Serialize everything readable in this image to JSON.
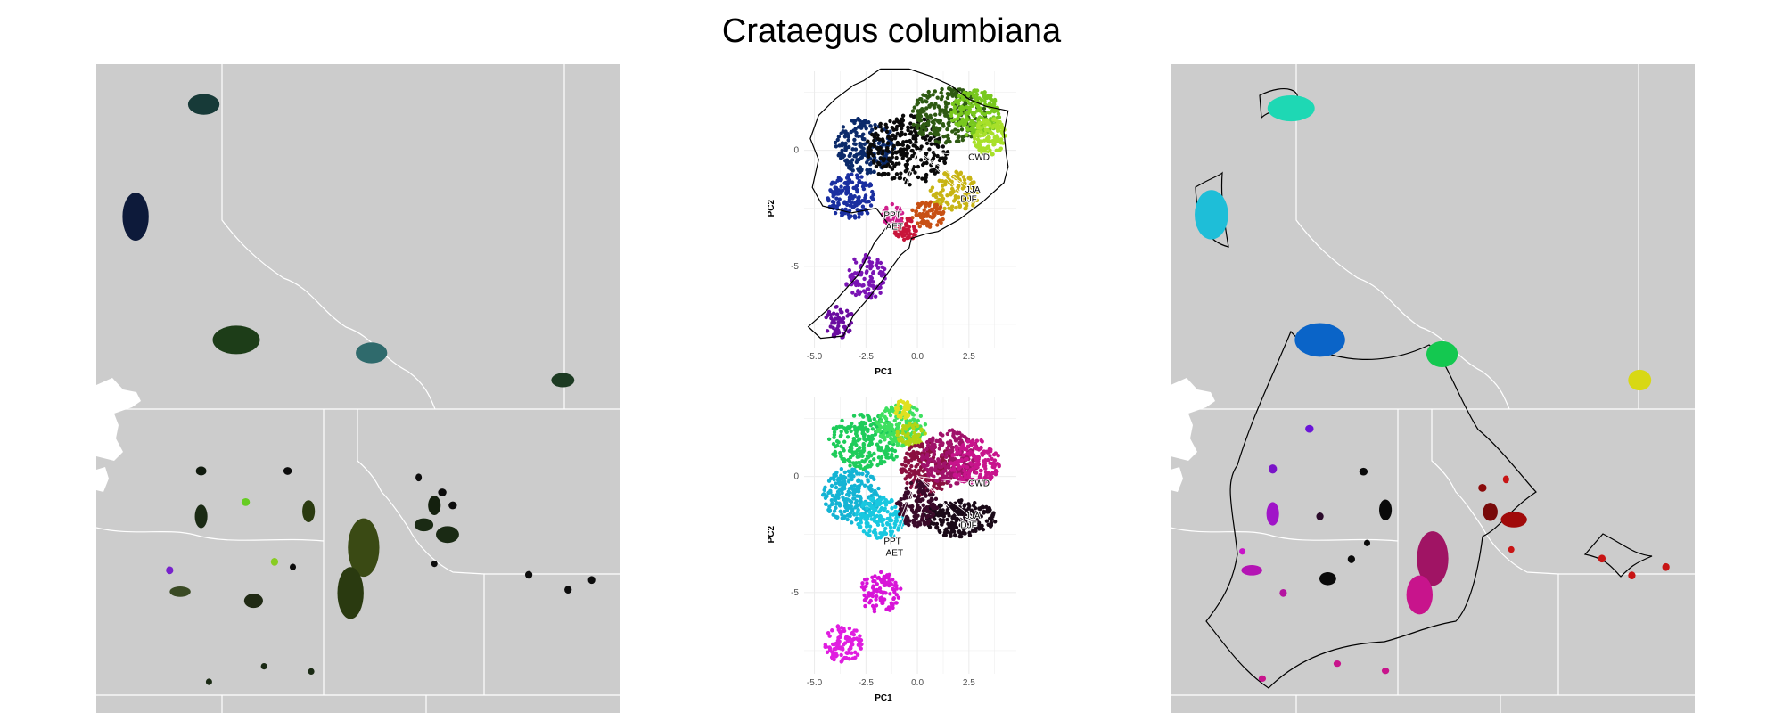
{
  "title": "Crataegus columbiana",
  "colors": {
    "land": "#cccccc",
    "water": "#ffffff",
    "border": "#ffffff",
    "hull": "#000000"
  },
  "chart_data": [
    {
      "type": "map",
      "panel": "left",
      "note": "",
      "patches": [
        {
          "cx": 0.205,
          "cy": 0.062,
          "rx": 0.03,
          "ry": 0.016,
          "color": "#173a38"
        },
        {
          "cx": 0.075,
          "cy": 0.235,
          "rx": 0.025,
          "ry": 0.037,
          "color": "#0d1a3a"
        },
        {
          "cx": 0.267,
          "cy": 0.425,
          "rx": 0.045,
          "ry": 0.022,
          "color": "#1d3d18"
        },
        {
          "cx": 0.525,
          "cy": 0.445,
          "rx": 0.03,
          "ry": 0.016,
          "color": "#2f6a6c"
        },
        {
          "cx": 0.89,
          "cy": 0.487,
          "rx": 0.022,
          "ry": 0.011,
          "color": "#1c3a22"
        },
        {
          "cx": 0.2,
          "cy": 0.627,
          "rx": 0.01,
          "ry": 0.007,
          "color": "#101a0e"
        },
        {
          "cx": 0.365,
          "cy": 0.627,
          "rx": 0.008,
          "ry": 0.006,
          "color": "#0c0c0c"
        },
        {
          "cx": 0.2,
          "cy": 0.697,
          "rx": 0.012,
          "ry": 0.018,
          "color": "#1a2a14"
        },
        {
          "cx": 0.285,
          "cy": 0.675,
          "rx": 0.008,
          "ry": 0.006,
          "color": "#66cc22"
        },
        {
          "cx": 0.405,
          "cy": 0.689,
          "rx": 0.012,
          "ry": 0.017,
          "color": "#2a3a10"
        },
        {
          "cx": 0.51,
          "cy": 0.745,
          "rx": 0.03,
          "ry": 0.045,
          "color": "#3a4a14"
        },
        {
          "cx": 0.485,
          "cy": 0.815,
          "rx": 0.025,
          "ry": 0.04,
          "color": "#2a3a10"
        },
        {
          "cx": 0.34,
          "cy": 0.767,
          "rx": 0.007,
          "ry": 0.006,
          "color": "#88cc22"
        },
        {
          "cx": 0.14,
          "cy": 0.78,
          "rx": 0.007,
          "ry": 0.006,
          "color": "#7722cc"
        },
        {
          "cx": 0.16,
          "cy": 0.813,
          "rx": 0.02,
          "ry": 0.008,
          "color": "#3a4a24"
        },
        {
          "cx": 0.3,
          "cy": 0.827,
          "rx": 0.018,
          "ry": 0.011,
          "color": "#202a14"
        },
        {
          "cx": 0.375,
          "cy": 0.775,
          "rx": 0.006,
          "ry": 0.005,
          "color": "#0c0c0c"
        },
        {
          "cx": 0.615,
          "cy": 0.637,
          "rx": 0.006,
          "ry": 0.006,
          "color": "#0c0c0c"
        },
        {
          "cx": 0.625,
          "cy": 0.71,
          "rx": 0.018,
          "ry": 0.01,
          "color": "#1a2a14"
        },
        {
          "cx": 0.66,
          "cy": 0.66,
          "rx": 0.008,
          "ry": 0.006,
          "color": "#0c0c0c"
        },
        {
          "cx": 0.645,
          "cy": 0.68,
          "rx": 0.012,
          "ry": 0.015,
          "color": "#14200e"
        },
        {
          "cx": 0.68,
          "cy": 0.68,
          "rx": 0.008,
          "ry": 0.006,
          "color": "#0c0c0c"
        },
        {
          "cx": 0.67,
          "cy": 0.725,
          "rx": 0.022,
          "ry": 0.013,
          "color": "#1a2a14"
        },
        {
          "cx": 0.645,
          "cy": 0.77,
          "rx": 0.006,
          "ry": 0.005,
          "color": "#0c0c0c"
        },
        {
          "cx": 0.825,
          "cy": 0.787,
          "rx": 0.007,
          "ry": 0.006,
          "color": "#0c0c0c"
        },
        {
          "cx": 0.9,
          "cy": 0.81,
          "rx": 0.007,
          "ry": 0.006,
          "color": "#0c0c0c"
        },
        {
          "cx": 0.945,
          "cy": 0.795,
          "rx": 0.007,
          "ry": 0.006,
          "color": "#0c0c0c"
        },
        {
          "cx": 0.215,
          "cy": 0.952,
          "rx": 0.006,
          "ry": 0.005,
          "color": "#1a2a14"
        },
        {
          "cx": 0.32,
          "cy": 0.928,
          "rx": 0.006,
          "ry": 0.005,
          "color": "#1a2a14"
        },
        {
          "cx": 0.41,
          "cy": 0.936,
          "rx": 0.006,
          "ry": 0.005,
          "color": "#1a2a14"
        }
      ]
    },
    {
      "type": "scatter",
      "panel": "pca-top",
      "xlabel": "PC1",
      "ylabel": "PC2",
      "xlim": [
        -5.5,
        4.8
      ],
      "ylim": [
        -8.5,
        3.4
      ],
      "xticks": [
        -5.0,
        -2.5,
        0.0,
        2.5
      ],
      "yticks": [
        0,
        -5
      ],
      "xtick_labels": [
        "-5.0",
        "-2.5",
        "0.0",
        "2.5"
      ],
      "ytick_labels": [
        "0",
        "-5"
      ],
      "grid": true,
      "point_clusters": [
        {
          "x": -3.2,
          "y": -2.0,
          "rx": 1.2,
          "ry": 1.0,
          "n": 160,
          "color": "#1a2fa0"
        },
        {
          "x": -2.5,
          "y": 0.2,
          "rx": 1.5,
          "ry": 1.2,
          "n": 200,
          "color": "#0b2a6a"
        },
        {
          "x": -0.5,
          "y": 0.0,
          "rx": 2.0,
          "ry": 1.5,
          "n": 260,
          "color": "#0a0a0a"
        },
        {
          "x": 1.5,
          "y": 1.5,
          "rx": 1.8,
          "ry": 1.2,
          "n": 220,
          "color": "#2e5a12"
        },
        {
          "x": 2.8,
          "y": 1.6,
          "rx": 1.2,
          "ry": 1.0,
          "n": 200,
          "color": "#78c81e"
        },
        {
          "x": 3.5,
          "y": 0.6,
          "rx": 0.8,
          "ry": 0.8,
          "n": 120,
          "color": "#a8e02a"
        },
        {
          "x": 1.8,
          "y": -1.8,
          "rx": 1.2,
          "ry": 0.9,
          "n": 120,
          "color": "#c8b414"
        },
        {
          "x": 0.5,
          "y": -2.8,
          "rx": 0.8,
          "ry": 0.6,
          "n": 80,
          "color": "#c85014"
        },
        {
          "x": -0.6,
          "y": -3.4,
          "rx": 0.6,
          "ry": 0.5,
          "n": 60,
          "color": "#c8143a"
        },
        {
          "x": -1.2,
          "y": -2.8,
          "rx": 0.5,
          "ry": 0.5,
          "n": 50,
          "color": "#d0208c"
        },
        {
          "x": -2.5,
          "y": -5.5,
          "rx": 1.0,
          "ry": 1.0,
          "n": 100,
          "color": "#7a14b4"
        },
        {
          "x": -3.8,
          "y": -7.4,
          "rx": 0.7,
          "ry": 0.7,
          "n": 60,
          "color": "#6a0ca0"
        }
      ],
      "outline": [
        [
          -1.8,
          3.5
        ],
        [
          -0.4,
          3.5
        ],
        [
          0.6,
          3.2
        ],
        [
          1.6,
          2.8
        ],
        [
          2.5,
          2.2
        ],
        [
          3.3,
          1.9
        ],
        [
          4.4,
          1.7
        ],
        [
          4.2,
          0.8
        ],
        [
          4.3,
          -0.1
        ],
        [
          4.4,
          -0.7
        ],
        [
          4.2,
          -1.4
        ],
        [
          3.2,
          -2.2
        ],
        [
          2.0,
          -3.0
        ],
        [
          1.0,
          -3.5
        ],
        [
          0.4,
          -3.6
        ],
        [
          -0.3,
          -3.8
        ],
        [
          -0.4,
          -4.2
        ],
        [
          -0.8,
          -4.5
        ],
        [
          -1.7,
          -5.6
        ],
        [
          -2.4,
          -6.4
        ],
        [
          -3.1,
          -7.1
        ],
        [
          -3.6,
          -8.0
        ],
        [
          -4.7,
          -8.1
        ],
        [
          -5.3,
          -7.6
        ],
        [
          -4.4,
          -6.9
        ],
        [
          -2.9,
          -5.4
        ],
        [
          -2.1,
          -4.0
        ],
        [
          -1.4,
          -3.2
        ],
        [
          -2.0,
          -2.5
        ],
        [
          -3.2,
          -2.7
        ],
        [
          -4.6,
          -2.4
        ],
        [
          -5.1,
          -1.6
        ],
        [
          -4.8,
          -0.4
        ],
        [
          -5.2,
          0.5
        ],
        [
          -4.8,
          1.5
        ],
        [
          -4.0,
          2.2
        ],
        [
          -3.1,
          2.8
        ],
        [
          -2.6,
          3.0
        ],
        [
          -1.8,
          3.5
        ]
      ],
      "loadings": [
        {
          "name": "CWD",
          "x": 2.9,
          "y": -0.3
        },
        {
          "name": "JJA",
          "x": 2.6,
          "y": -1.7
        },
        {
          "name": "DJF",
          "x": 2.4,
          "y": -2.1
        },
        {
          "name": "PPT",
          "x": -1.3,
          "y": -2.8
        },
        {
          "name": "AET",
          "x": -1.2,
          "y": -3.3
        }
      ]
    },
    {
      "type": "scatter",
      "panel": "pca-bottom",
      "xlabel": "PC1",
      "ylabel": "PC2",
      "xlim": [
        -5.5,
        4.8
      ],
      "ylim": [
        -8.5,
        3.4
      ],
      "xticks": [
        -5.0,
        -2.5,
        0.0,
        2.5
      ],
      "yticks": [
        0,
        -5
      ],
      "xtick_labels": [
        "-5.0",
        "-2.5",
        "0.0",
        "2.5"
      ],
      "ytick_labels": [
        "0",
        "-5"
      ],
      "grid": true,
      "point_clusters": [
        {
          "x": -2.5,
          "y": 1.5,
          "rx": 1.8,
          "ry": 1.2,
          "n": 240,
          "color": "#1ecc5a"
        },
        {
          "x": -0.8,
          "y": 2.2,
          "rx": 1.2,
          "ry": 0.9,
          "n": 160,
          "color": "#3ee060"
        },
        {
          "x": -3.2,
          "y": -0.8,
          "rx": 1.4,
          "ry": 1.2,
          "n": 220,
          "color": "#14b4d4"
        },
        {
          "x": -1.8,
          "y": -1.8,
          "rx": 1.2,
          "ry": 0.9,
          "n": 160,
          "color": "#18c8e0"
        },
        {
          "x": -0.3,
          "y": 1.8,
          "rx": 0.7,
          "ry": 0.5,
          "n": 60,
          "color": "#b4d414"
        },
        {
          "x": -0.7,
          "y": 2.9,
          "rx": 0.4,
          "ry": 0.4,
          "n": 40,
          "color": "#e0e020"
        },
        {
          "x": 0.5,
          "y": 0.4,
          "rx": 1.3,
          "ry": 1.2,
          "n": 200,
          "color": "#8a1040"
        },
        {
          "x": 1.6,
          "y": 0.8,
          "rx": 1.4,
          "ry": 1.2,
          "n": 220,
          "color": "#a0126a"
        },
        {
          "x": 2.8,
          "y": 0.6,
          "rx": 1.2,
          "ry": 1.0,
          "n": 180,
          "color": "#c8148c"
        },
        {
          "x": 2.0,
          "y": -1.8,
          "rx": 1.8,
          "ry": 0.8,
          "n": 240,
          "color": "#1a0a18"
        },
        {
          "x": 0.0,
          "y": -1.2,
          "rx": 1.0,
          "ry": 1.0,
          "n": 140,
          "color": "#3a0a2a"
        },
        {
          "x": -1.8,
          "y": -5.0,
          "rx": 1.0,
          "ry": 0.9,
          "n": 110,
          "color": "#d814d8"
        },
        {
          "x": -3.6,
          "y": -7.2,
          "rx": 0.9,
          "ry": 0.8,
          "n": 100,
          "color": "#e01ee0"
        }
      ],
      "outline": [],
      "loadings": [
        {
          "name": "CWD",
          "x": 2.9,
          "y": -0.3
        },
        {
          "name": "JJA",
          "x": 2.6,
          "y": -1.7
        },
        {
          "name": "DJF",
          "x": 2.4,
          "y": -2.1
        },
        {
          "name": "PPT",
          "x": -1.3,
          "y": -2.8
        },
        {
          "name": "AET",
          "x": -1.2,
          "y": -3.3
        }
      ]
    },
    {
      "type": "map",
      "panel": "right",
      "patches": [
        {
          "cx": 0.23,
          "cy": 0.068,
          "rx": 0.045,
          "ry": 0.02,
          "color": "#1ed8b4"
        },
        {
          "cx": 0.078,
          "cy": 0.232,
          "rx": 0.032,
          "ry": 0.038,
          "color": "#1ebed8"
        },
        {
          "cx": 0.285,
          "cy": 0.425,
          "rx": 0.048,
          "ry": 0.026,
          "color": "#0a64c8"
        },
        {
          "cx": 0.518,
          "cy": 0.447,
          "rx": 0.03,
          "ry": 0.02,
          "color": "#14c850"
        },
        {
          "cx": 0.895,
          "cy": 0.487,
          "rx": 0.022,
          "ry": 0.016,
          "color": "#d8d814"
        },
        {
          "cx": 0.265,
          "cy": 0.562,
          "rx": 0.008,
          "ry": 0.006,
          "color": "#6a14d8"
        },
        {
          "cx": 0.195,
          "cy": 0.624,
          "rx": 0.008,
          "ry": 0.007,
          "color": "#7a14c8"
        },
        {
          "cx": 0.368,
          "cy": 0.628,
          "rx": 0.008,
          "ry": 0.006,
          "color": "#0a0a0a"
        },
        {
          "cx": 0.195,
          "cy": 0.693,
          "rx": 0.012,
          "ry": 0.018,
          "color": "#a014c8"
        },
        {
          "cx": 0.285,
          "cy": 0.697,
          "rx": 0.007,
          "ry": 0.006,
          "color": "#2a0a2a"
        },
        {
          "cx": 0.41,
          "cy": 0.687,
          "rx": 0.012,
          "ry": 0.016,
          "color": "#0a0a0a"
        },
        {
          "cx": 0.5,
          "cy": 0.762,
          "rx": 0.03,
          "ry": 0.042,
          "color": "#a01464"
        },
        {
          "cx": 0.475,
          "cy": 0.818,
          "rx": 0.025,
          "ry": 0.03,
          "color": "#c8148c"
        },
        {
          "cx": 0.345,
          "cy": 0.763,
          "rx": 0.007,
          "ry": 0.006,
          "color": "#0a0a0a"
        },
        {
          "cx": 0.137,
          "cy": 0.751,
          "rx": 0.006,
          "ry": 0.005,
          "color": "#c814c8"
        },
        {
          "cx": 0.155,
          "cy": 0.78,
          "rx": 0.02,
          "ry": 0.008,
          "color": "#b414b4"
        },
        {
          "cx": 0.3,
          "cy": 0.793,
          "rx": 0.016,
          "ry": 0.01,
          "color": "#0a0a0a"
        },
        {
          "cx": 0.375,
          "cy": 0.738,
          "rx": 0.006,
          "ry": 0.005,
          "color": "#0a0a0a"
        },
        {
          "cx": 0.215,
          "cy": 0.815,
          "rx": 0.007,
          "ry": 0.006,
          "color": "#b414a0"
        },
        {
          "cx": 0.595,
          "cy": 0.653,
          "rx": 0.008,
          "ry": 0.006,
          "color": "#8a0a0a"
        },
        {
          "cx": 0.64,
          "cy": 0.64,
          "rx": 0.006,
          "ry": 0.006,
          "color": "#c81414"
        },
        {
          "cx": 0.61,
          "cy": 0.69,
          "rx": 0.014,
          "ry": 0.014,
          "color": "#780a0a"
        },
        {
          "cx": 0.655,
          "cy": 0.702,
          "rx": 0.025,
          "ry": 0.012,
          "color": "#a00a0a"
        },
        {
          "cx": 0.65,
          "cy": 0.748,
          "rx": 0.006,
          "ry": 0.005,
          "color": "#c81414"
        },
        {
          "cx": 0.823,
          "cy": 0.762,
          "rx": 0.007,
          "ry": 0.006,
          "color": "#c81414"
        },
        {
          "cx": 0.88,
          "cy": 0.788,
          "rx": 0.007,
          "ry": 0.006,
          "color": "#c81414"
        },
        {
          "cx": 0.945,
          "cy": 0.775,
          "rx": 0.007,
          "ry": 0.006,
          "color": "#c81414"
        },
        {
          "cx": 0.175,
          "cy": 0.947,
          "rx": 0.007,
          "ry": 0.005,
          "color": "#c8148c"
        },
        {
          "cx": 0.318,
          "cy": 0.924,
          "rx": 0.007,
          "ry": 0.005,
          "color": "#c8148c"
        },
        {
          "cx": 0.41,
          "cy": 0.935,
          "rx": 0.007,
          "ry": 0.005,
          "color": "#c8148c"
        }
      ]
    }
  ]
}
